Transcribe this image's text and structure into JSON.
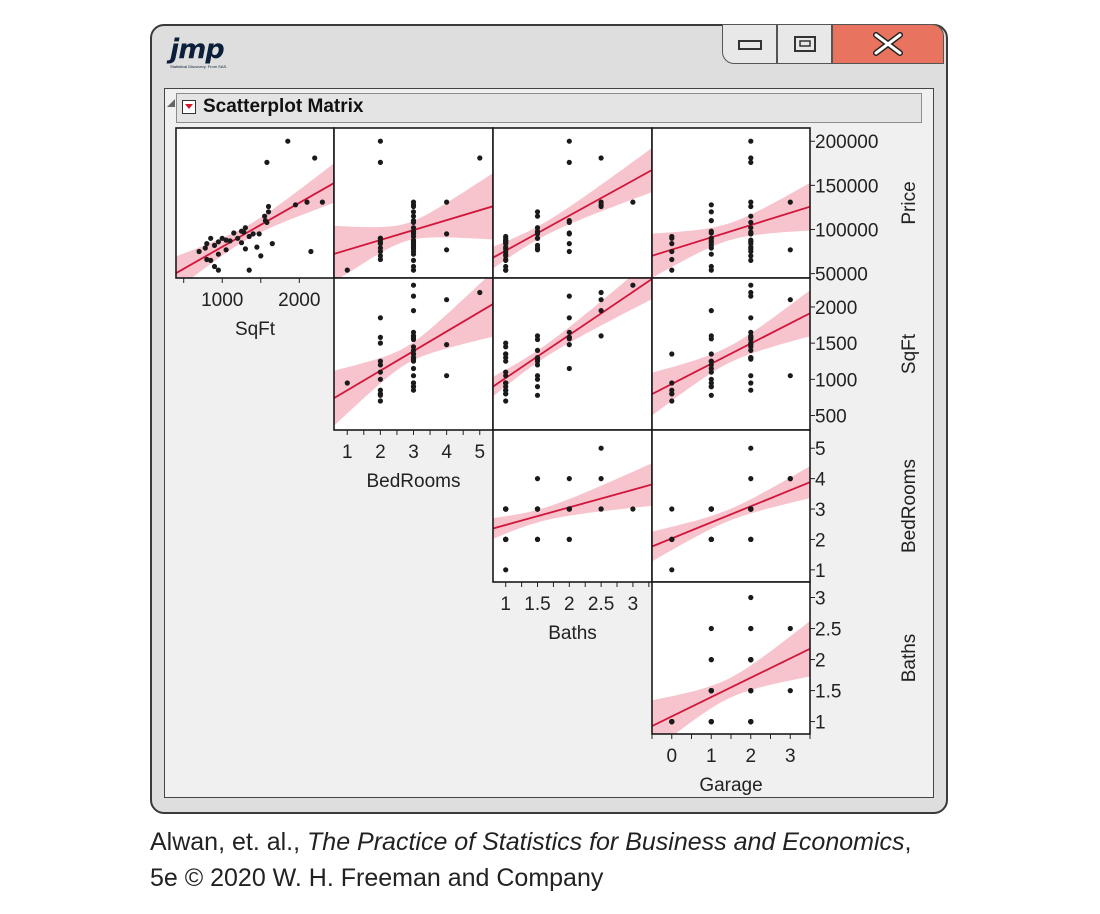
{
  "logo": {
    "text": "jmp",
    "tagline": "Statistical Discovery. From SAS."
  },
  "window_controls": {
    "minimize_icon": "minimize-icon",
    "maximize_icon": "maximize-icon",
    "close_icon": "close-x-icon"
  },
  "report": {
    "title": "Scatterplot Matrix"
  },
  "colors": {
    "fit_line": "#d1163a",
    "confidence_band": "#f7c3cd",
    "points": "#1a1a1a",
    "close_button": "#e8735f"
  },
  "chart_data": {
    "type": "scatter",
    "title": "Scatterplot Matrix",
    "variables": [
      "Price",
      "SqFt",
      "BedRooms",
      "Baths",
      "Garage"
    ],
    "column_variables": [
      "SqFt",
      "BedRooms",
      "Baths",
      "Garage"
    ],
    "row_variables": [
      "Price",
      "SqFt",
      "BedRooms",
      "Baths"
    ],
    "axes": {
      "SqFt": {
        "range": [
          400,
          2450
        ],
        "ticks": [
          1000,
          2000
        ],
        "tick_labels": [
          "1000",
          "2000"
        ],
        "right_range": [
          300,
          2400
        ],
        "right_ticks": [
          500,
          1000,
          1500,
          2000
        ],
        "right_tick_labels": [
          "500",
          "1000",
          "1500",
          "2000"
        ]
      },
      "BedRooms": {
        "range": [
          0.6,
          5.4
        ],
        "ticks": [
          1,
          2,
          3,
          4,
          5
        ],
        "tick_labels": [
          "1",
          "2",
          "3",
          "4",
          "5"
        ],
        "right_range": [
          0.6,
          5.6
        ],
        "right_ticks": [
          1,
          2,
          3,
          4,
          5
        ],
        "right_tick_labels": [
          "1",
          "2",
          "3",
          "4",
          "5"
        ]
      },
      "Baths": {
        "range": [
          0.8,
          3.3
        ],
        "ticks": [
          1,
          1.5,
          2,
          2.5,
          3
        ],
        "tick_labels": [
          "1",
          "1.5",
          "2",
          "2.5",
          "3"
        ],
        "right_range": [
          0.8,
          3.25
        ],
        "right_ticks": [
          1,
          1.5,
          2,
          2.5,
          3
        ],
        "right_tick_labels": [
          "1",
          "1.5",
          "2",
          "2.5",
          "3"
        ]
      },
      "Garage": {
        "range": [
          -0.5,
          3.5
        ],
        "ticks": [
          0,
          1,
          2,
          3
        ],
        "tick_labels": [
          "0",
          "1",
          "2",
          "3"
        ]
      },
      "Price": {
        "right_range": [
          45000,
          215000
        ],
        "right_ticks": [
          50000,
          100000,
          150000,
          200000
        ],
        "right_tick_labels": [
          "50000",
          "100000",
          "150000",
          "200000"
        ]
      }
    },
    "records": [
      {
        "SqFt": 1850,
        "BedRooms": 2,
        "Baths": 2,
        "Garage": 2,
        "Price": 200000
      },
      {
        "SqFt": 2200,
        "BedRooms": 5,
        "Baths": 2.5,
        "Garage": 2,
        "Price": 181000
      },
      {
        "SqFt": 1580,
        "BedRooms": 2,
        "Baths": 2,
        "Garage": 2,
        "Price": 176000
      },
      {
        "SqFt": 2100,
        "BedRooms": 4,
        "Baths": 2.5,
        "Garage": 3,
        "Price": 131000
      },
      {
        "SqFt": 1600,
        "BedRooms": 3,
        "Baths": 2.5,
        "Garage": 2,
        "Price": 126000
      },
      {
        "SqFt": 1950,
        "BedRooms": 3,
        "Baths": 2.5,
        "Garage": 1,
        "Price": 128000
      },
      {
        "SqFt": 2300,
        "BedRooms": 3,
        "Baths": 3,
        "Garage": 2,
        "Price": 131000
      },
      {
        "SqFt": 1600,
        "BedRooms": 3,
        "Baths": 1.5,
        "Garage": 1,
        "Price": 120000
      },
      {
        "SqFt": 1550,
        "BedRooms": 3,
        "Baths": 1.5,
        "Garage": 2,
        "Price": 115000
      },
      {
        "SqFt": 1560,
        "BedRooms": 3,
        "Baths": 2,
        "Garage": 1,
        "Price": 110000
      },
      {
        "SqFt": 1580,
        "BedRooms": 3,
        "Baths": 2,
        "Garage": 2,
        "Price": 108000
      },
      {
        "SqFt": 1300,
        "BedRooms": 3,
        "Baths": 1.5,
        "Garage": 2,
        "Price": 102000
      },
      {
        "SqFt": 1250,
        "BedRooms": 3,
        "Baths": 1.5,
        "Garage": 1,
        "Price": 98000
      },
      {
        "SqFt": 1280,
        "BedRooms": 3,
        "Baths": 1.5,
        "Garage": 2,
        "Price": 97000
      },
      {
        "SqFt": 1150,
        "BedRooms": 3,
        "Baths": 2,
        "Garage": 1,
        "Price": 96000
      },
      {
        "SqFt": 1400,
        "BedRooms": 3,
        "Baths": 1.5,
        "Garage": 2,
        "Price": 95000
      },
      {
        "SqFt": 1480,
        "BedRooms": 4,
        "Baths": 2,
        "Garage": 2,
        "Price": 95000
      },
      {
        "SqFt": 1350,
        "BedRooms": 3,
        "Baths": 1,
        "Garage": 0,
        "Price": 92000
      },
      {
        "SqFt": 1000,
        "BedRooms": 2,
        "Baths": 1.5,
        "Garage": 1,
        "Price": 90000
      },
      {
        "SqFt": 1200,
        "BedRooms": 2,
        "Baths": 1.5,
        "Garage": 1,
        "Price": 90000
      },
      {
        "SqFt": 850,
        "BedRooms": 2,
        "Baths": 1,
        "Garage": 0,
        "Price": 90000
      },
      {
        "SqFt": 1050,
        "BedRooms": 3,
        "Baths": 1,
        "Garage": 2,
        "Price": 88000
      },
      {
        "SqFt": 1100,
        "BedRooms": 2,
        "Baths": 1,
        "Garage": 1,
        "Price": 87000
      },
      {
        "SqFt": 950,
        "BedRooms": 3,
        "Baths": 1,
        "Garage": 2,
        "Price": 86000
      },
      {
        "SqFt": 1250,
        "BedRooms": 2,
        "Baths": 1,
        "Garage": 1,
        "Price": 85000
      },
      {
        "SqFt": 800,
        "BedRooms": 2,
        "Baths": 1,
        "Garage": 0,
        "Price": 84000
      },
      {
        "SqFt": 1650,
        "BedRooms": 3,
        "Baths": 2,
        "Garage": 2,
        "Price": 84000
      },
      {
        "SqFt": 900,
        "BedRooms": 3,
        "Baths": 1.5,
        "Garage": 1,
        "Price": 82000
      },
      {
        "SqFt": 1450,
        "BedRooms": 3,
        "Baths": 1,
        "Garage": 2,
        "Price": 80000
      },
      {
        "SqFt": 780,
        "BedRooms": 2,
        "Baths": 1.5,
        "Garage": 1,
        "Price": 79000
      },
      {
        "SqFt": 1300,
        "BedRooms": 3,
        "Baths": 1,
        "Garage": 2,
        "Price": 78000
      },
      {
        "SqFt": 1050,
        "BedRooms": 4,
        "Baths": 1.5,
        "Garage": 3,
        "Price": 77000
      },
      {
        "SqFt": 700,
        "BedRooms": 2,
        "Baths": 1,
        "Garage": 0,
        "Price": 75000
      },
      {
        "SqFt": 2150,
        "BedRooms": 3,
        "Baths": 2,
        "Garage": 2,
        "Price": 75000
      },
      {
        "SqFt": 950,
        "BedRooms": 3,
        "Baths": 1,
        "Garage": 1,
        "Price": 72000
      },
      {
        "SqFt": 1500,
        "BedRooms": 2,
        "Baths": 1,
        "Garage": 2,
        "Price": 70000
      },
      {
        "SqFt": 800,
        "BedRooms": 2,
        "Baths": 1,
        "Garage": 0,
        "Price": 66000
      },
      {
        "SqFt": 850,
        "BedRooms": 3,
        "Baths": 1,
        "Garage": 2,
        "Price": 65000
      },
      {
        "SqFt": 900,
        "BedRooms": 3,
        "Baths": 1,
        "Garage": 1,
        "Price": 58000
      },
      {
        "SqFt": 1350,
        "BedRooms": 3,
        "Baths": 1,
        "Garage": 1,
        "Price": 54000
      },
      {
        "SqFt": 950,
        "BedRooms": 1,
        "Baths": 1,
        "Garage": 0,
        "Price": 54000
      }
    ],
    "fit": "linear regression line with confidence band in every cell"
  },
  "citation": {
    "part1": "Alwan, et. al., ",
    "book": "The Practice of Statistics for Business and Economics",
    "part2": ",",
    "line2": "5e © 2020 W. H. Freeman and Company"
  }
}
